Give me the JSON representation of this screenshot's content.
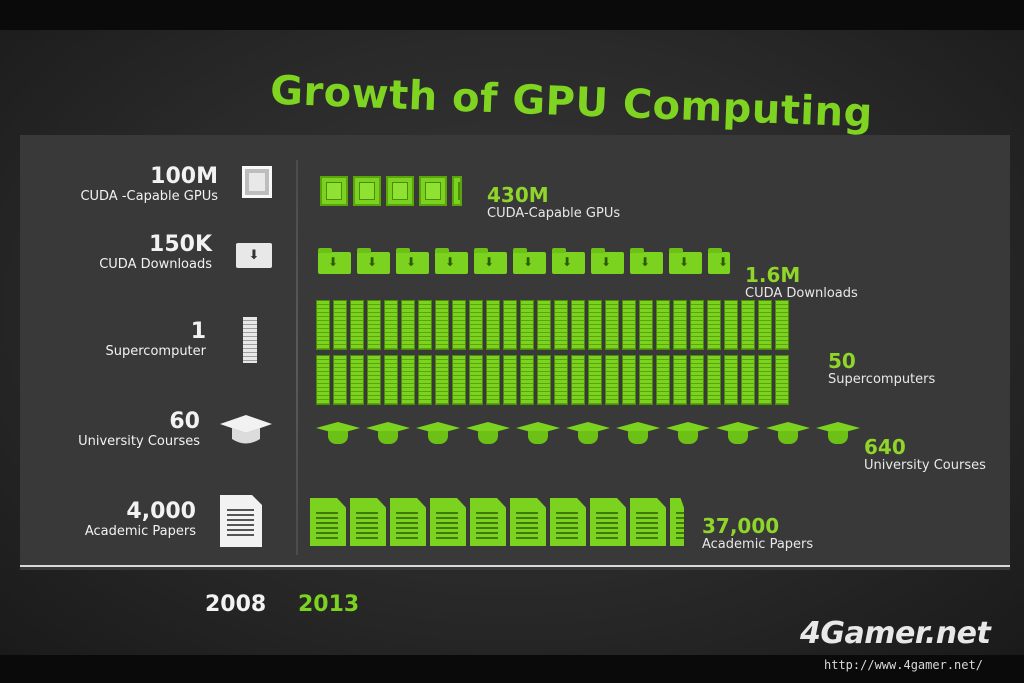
{
  "slide": {
    "title": "Growth of GPU Computing",
    "years": {
      "left": "2008",
      "right": "2013"
    },
    "left_column": [
      {
        "value": "100M",
        "label": "CUDA -Capable GPUs",
        "icon": "gpu-chip-icon"
      },
      {
        "value": "150K",
        "label": "CUDA Downloads",
        "icon": "download-folder-icon"
      },
      {
        "value": "1",
        "label": "Supercomputer",
        "icon": "server-rack-icon"
      },
      {
        "value": "60",
        "label": "University Courses",
        "icon": "graduation-cap-icon"
      },
      {
        "value": "4,000",
        "label": "Academic Papers",
        "icon": "document-icon"
      }
    ],
    "right_column": [
      {
        "value": "430M",
        "label": "CUDA-Capable GPUs",
        "icon": "gpu-chip-icon",
        "count": 4.3
      },
      {
        "value": "1.6M",
        "label": "CUDA Downloads",
        "icon": "download-folder-icon",
        "count": 10.7
      },
      {
        "value": "50",
        "label": "Supercomputers",
        "icon": "server-rack-icon",
        "count": 50
      },
      {
        "value": "640",
        "label": "University Courses",
        "icon": "graduation-cap-icon",
        "count": 10.7
      },
      {
        "value": "37,000",
        "label": "Academic Papers",
        "icon": "document-icon",
        "count": 9.25
      }
    ],
    "accent_color": "#7bd21f"
  },
  "watermark": {
    "brand": "4Gamer.net",
    "url": "http://www.4gamer.net/"
  }
}
